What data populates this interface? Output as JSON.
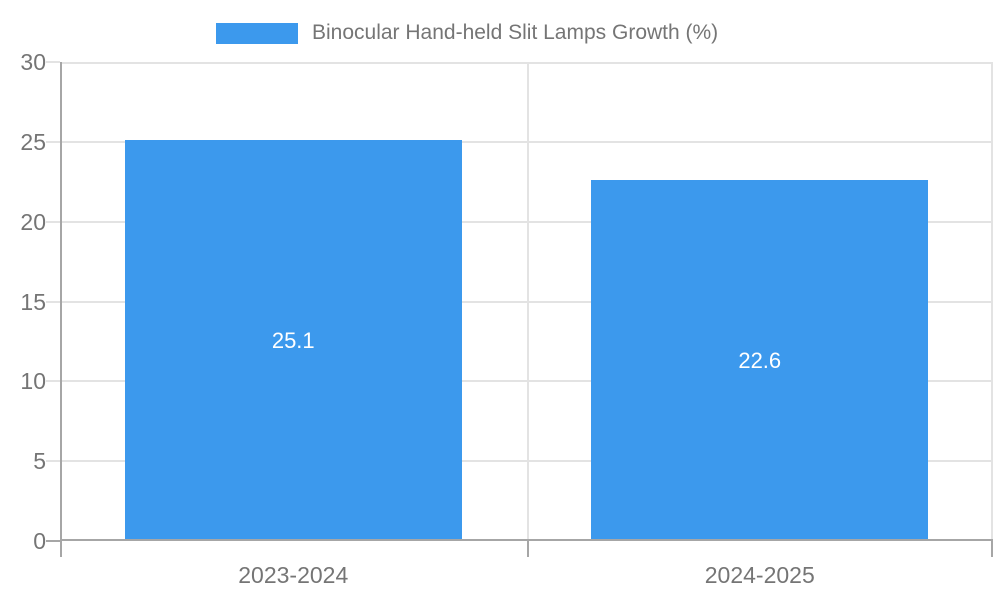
{
  "chart_data": {
    "type": "bar",
    "title": "",
    "legend_entries": [
      "Binocular Hand-held Slit Lamps Growth (%)"
    ],
    "legend_position": "top-center",
    "categories": [
      "2023-2024",
      "2024-2025"
    ],
    "values": [
      25.1,
      22.6
    ],
    "value_labels": [
      "25.1",
      "22.6"
    ],
    "xlabel": "",
    "ylabel": "",
    "ylim": [
      0,
      30
    ],
    "yticks": [
      0,
      5,
      10,
      15,
      20,
      25,
      30
    ],
    "grid": true,
    "colors": {
      "bar": "#3C99ED",
      "axis": "#A6A6A6",
      "grid": "#E3E3E3",
      "text": "#757575",
      "value_text": "#FFFFFF",
      "background": "#FFFFFF"
    }
  }
}
